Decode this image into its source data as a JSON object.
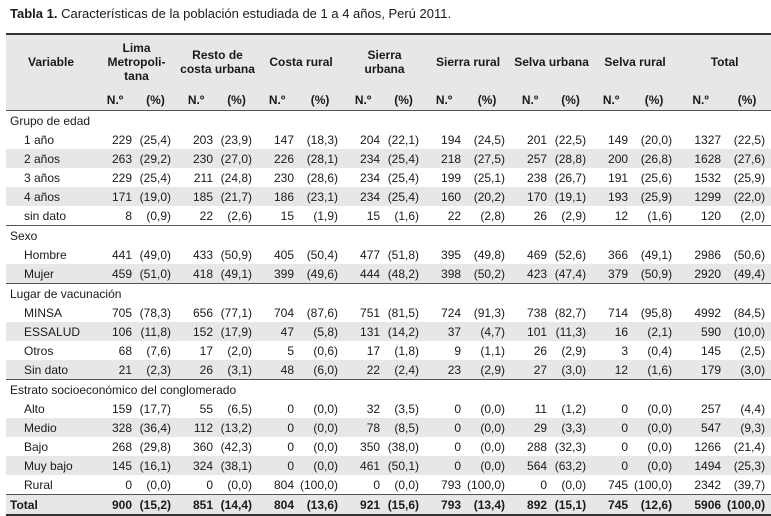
{
  "caption": {
    "label": "Tabla 1.",
    "text": "Características de la población estudiada de 1 a 4 años, Perú 2011."
  },
  "header": {
    "variable": "Variable",
    "groups": [
      "Lima Metropoli-tana",
      "Resto de costa urbana",
      "Costa rural",
      "Sierra urbana",
      "Sierra rural",
      "Selva urbana",
      "Selva rural",
      "Total"
    ],
    "n_label": "N.º",
    "pct_label": "(%)"
  },
  "sections": [
    {
      "title": "Grupo de edad",
      "rows": [
        {
          "label": "1 año",
          "cells": [
            "229",
            "(25,4)",
            "203",
            "(23,9)",
            "147",
            "(18,3)",
            "204",
            "(22,1)",
            "194",
            "(24,5)",
            "201",
            "(22,5)",
            "149",
            "(20,0)",
            "1327",
            "(22,5)"
          ]
        },
        {
          "label": "2 años",
          "cells": [
            "263",
            "(29,2)",
            "230",
            "(27,0)",
            "226",
            "(28,1)",
            "234",
            "(25,4)",
            "218",
            "(27,5)",
            "257",
            "(28,8)",
            "200",
            "(26,8)",
            "1628",
            "(27,6)"
          ]
        },
        {
          "label": "3 años",
          "cells": [
            "229",
            "(25,4)",
            "211",
            "(24,8)",
            "230",
            "(28,6)",
            "234",
            "(25,4)",
            "199",
            "(25,1)",
            "238",
            "(26,7)",
            "191",
            "(25,6)",
            "1532",
            "(25,9)"
          ]
        },
        {
          "label": "4 años",
          "cells": [
            "171",
            "(19,0)",
            "185",
            "(21,7)",
            "186",
            "(23,1)",
            "234",
            "(25,4)",
            "160",
            "(20,2)",
            "170",
            "(19,1)",
            "193",
            "(25,9)",
            "1299",
            "(22,0)"
          ]
        },
        {
          "label": "sin dato",
          "cells": [
            "8",
            "(0,9)",
            "22",
            "(2,6)",
            "15",
            "(1,9)",
            "15",
            "(1,6)",
            "22",
            "(2,8)",
            "26",
            "(2,9)",
            "12",
            "(1,6)",
            "120",
            "(2,0)"
          ]
        }
      ]
    },
    {
      "title": "Sexo",
      "rows": [
        {
          "label": "Hombre",
          "cells": [
            "441",
            "(49,0)",
            "433",
            "(50,9)",
            "405",
            "(50,4)",
            "477",
            "(51,8)",
            "395",
            "(49,8)",
            "469",
            "(52,6)",
            "366",
            "(49,1)",
            "2986",
            "(50,6)"
          ]
        },
        {
          "label": "Mujer",
          "cells": [
            "459",
            "(51,0)",
            "418",
            "(49,1)",
            "399",
            "(49,6)",
            "444",
            "(48,2)",
            "398",
            "(50,2)",
            "423",
            "(47,4)",
            "379",
            "(50,9)",
            "2920",
            "(49,4)"
          ]
        }
      ]
    },
    {
      "title": "Lugar de vacunación",
      "rows": [
        {
          "label": "MINSA",
          "cells": [
            "705",
            "(78,3)",
            "656",
            "(77,1)",
            "704",
            "(87,6)",
            "751",
            "(81,5)",
            "724",
            "(91,3)",
            "738",
            "(82,7)",
            "714",
            "(95,8)",
            "4992",
            "(84,5)"
          ]
        },
        {
          "label": "ESSALUD",
          "cells": [
            "106",
            "(11,8)",
            "152",
            "(17,9)",
            "47",
            "(5,8)",
            "131",
            "(14,2)",
            "37",
            "(4,7)",
            "101",
            "(11,3)",
            "16",
            "(2,1)",
            "590",
            "(10,0)"
          ]
        },
        {
          "label": "Otros",
          "cells": [
            "68",
            "(7,6)",
            "17",
            "(2,0)",
            "5",
            "(0,6)",
            "17",
            "(1,8)",
            "9",
            "(1,1)",
            "26",
            "(2,9)",
            "3",
            "(0,4)",
            "145",
            "(2,5)"
          ]
        },
        {
          "label": "Sin dato",
          "cells": [
            "21",
            "(2,3)",
            "26",
            "(3,1)",
            "48",
            "(6,0)",
            "22",
            "(2,4)",
            "23",
            "(2,9)",
            "27",
            "(3,0)",
            "12",
            "(1,6)",
            "179",
            "(3,0)"
          ]
        }
      ]
    },
    {
      "title": "Estrato socioeconómico del conglomerado",
      "rows": [
        {
          "label": "Alto",
          "cells": [
            "159",
            "(17,7)",
            "55",
            "(6,5)",
            "0",
            "(0,0)",
            "32",
            "(3,5)",
            "0",
            "(0,0)",
            "11",
            "(1,2)",
            "0",
            "(0,0)",
            "257",
            "(4,4)"
          ]
        },
        {
          "label": "Medio",
          "cells": [
            "328",
            "(36,4)",
            "112",
            "(13,2)",
            "0",
            "(0,0)",
            "78",
            "(8,5)",
            "0",
            "(0,0)",
            "29",
            "(3,3)",
            "0",
            "(0,0)",
            "547",
            "(9,3)"
          ]
        },
        {
          "label": "Bajo",
          "cells": [
            "268",
            "(29,8)",
            "360",
            "(42,3)",
            "0",
            "(0,0)",
            "350",
            "(38,0)",
            "0",
            "(0,0)",
            "288",
            "(32,3)",
            "0",
            "(0,0)",
            "1266",
            "(21,4)"
          ]
        },
        {
          "label": "Muy bajo",
          "cells": [
            "145",
            "(16,1)",
            "324",
            "(38,1)",
            "0",
            "(0,0)",
            "461",
            "(50,1)",
            "0",
            "(0,0)",
            "564",
            "(63,2)",
            "0",
            "(0,0)",
            "1494",
            "(25,3)"
          ]
        },
        {
          "label": "Rural",
          "cells": [
            "0",
            "(0,0)",
            "0",
            "(0,0)",
            "804",
            "(100,0)",
            "0",
            "(0,0)",
            "793",
            "(100,0)",
            "0",
            "(0,0)",
            "745",
            "(100,0)",
            "2342",
            "(39,7)"
          ]
        }
      ]
    }
  ],
  "total": {
    "label": "Total",
    "cells": [
      "900",
      "(15,2)",
      "851",
      "(14,4)",
      "804",
      "(13,6)",
      "921",
      "(15,6)",
      "793",
      "(13,4)",
      "892",
      "(15,1)",
      "745",
      "(12,6)",
      "5906",
      "(100,0)"
    ]
  }
}
